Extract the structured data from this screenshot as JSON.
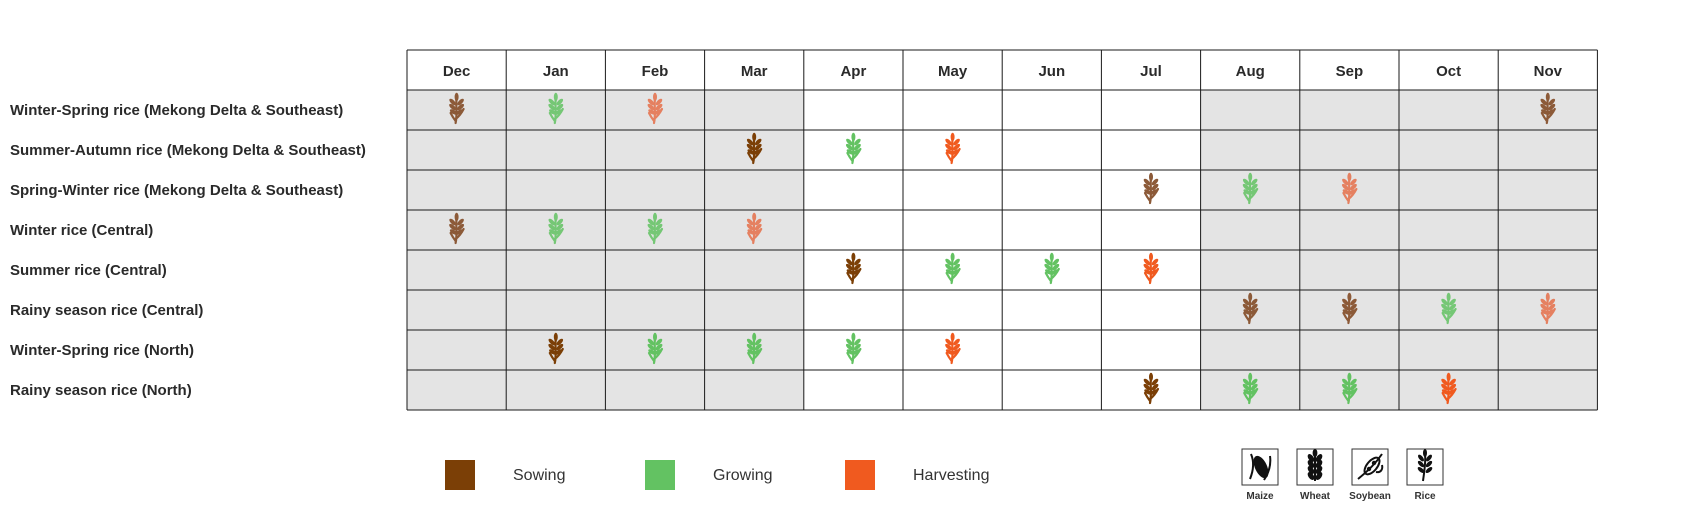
{
  "chart_data": {
    "type": "table",
    "months": [
      "Dec",
      "Jan",
      "Feb",
      "Mar",
      "Apr",
      "May",
      "Jun",
      "Jul",
      "Aug",
      "Sep",
      "Oct",
      "Nov"
    ],
    "rows": [
      {
        "label": "Winter-Spring rice (Mekong Delta & Southeast)",
        "stages": [
          "S",
          "G",
          "H",
          "",
          "",
          "",
          "",
          "",
          "",
          "",
          "",
          "S"
        ],
        "pale": true
      },
      {
        "label": "Summer-Autumn rice (Mekong Delta & Southeast)",
        "stages": [
          "",
          "",
          "",
          "S",
          "G",
          "H",
          "",
          "",
          "",
          "",
          "",
          ""
        ],
        "pale": false
      },
      {
        "label": "Spring-Winter rice (Mekong Delta & Southeast)",
        "stages": [
          "",
          "",
          "",
          "",
          "",
          "",
          "",
          "S",
          "G",
          "H",
          "",
          ""
        ],
        "pale": true
      },
      {
        "label": "Winter rice (Central)",
        "stages": [
          "S",
          "G",
          "G",
          "H",
          "",
          "",
          "",
          "",
          "",
          "",
          "",
          ""
        ],
        "pale": true
      },
      {
        "label": "Summer rice (Central)",
        "stages": [
          "",
          "",
          "",
          "",
          "S",
          "G",
          "G",
          "H",
          "",
          "",
          "",
          ""
        ],
        "pale": false
      },
      {
        "label": "Rainy season rice (Central)",
        "stages": [
          "",
          "",
          "",
          "",
          "",
          "",
          "",
          "",
          "S",
          "S",
          "G",
          "H"
        ],
        "pale": true
      },
      {
        "label": "Winter-Spring rice (North)",
        "stages": [
          "",
          "S",
          "G",
          "G",
          "G",
          "H",
          "",
          "",
          "",
          "",
          "",
          ""
        ],
        "pale": false
      },
      {
        "label": "Rainy season rice (North)",
        "stages": [
          "",
          "",
          "",
          "",
          "",
          "",
          "",
          "S",
          "G",
          "G",
          "H",
          ""
        ],
        "pale": false
      }
    ],
    "shaded_months": [
      "Dec",
      "Jan",
      "Feb",
      "Mar",
      "Aug",
      "Sep",
      "Oct",
      "Nov"
    ],
    "legend": [
      {
        "key": "S",
        "label": "Sowing",
        "color": "#7b3f06"
      },
      {
        "key": "G",
        "label": "Growing",
        "color": "#63c262"
      },
      {
        "key": "H",
        "label": "Harvesting",
        "color": "#f05a1f"
      }
    ],
    "pale_colors": {
      "S": "#8c5a38",
      "G": "#75c775",
      "H": "#e58060"
    },
    "crop_icons": [
      {
        "name": "maize-icon",
        "label": "Maize"
      },
      {
        "name": "wheat-icon",
        "label": "Wheat"
      },
      {
        "name": "soybean-icon",
        "label": "Soybean"
      },
      {
        "name": "rice-icon",
        "label": "Rice"
      }
    ],
    "colors": {
      "shade": "#e4e4e4",
      "grid": "#1a1a1a"
    }
  }
}
